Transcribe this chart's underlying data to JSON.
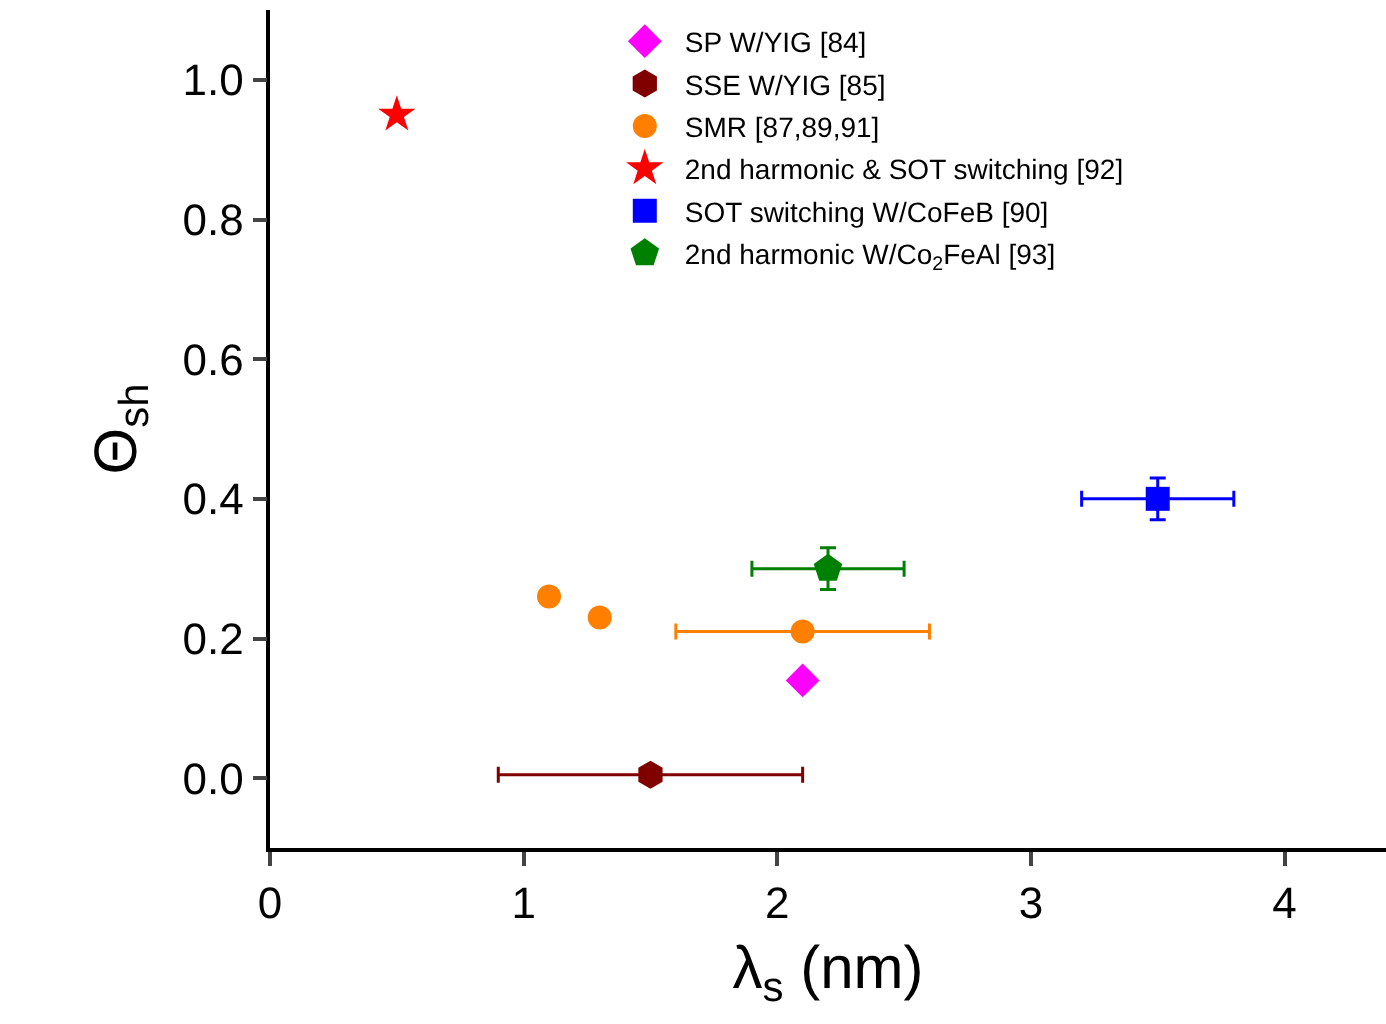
{
  "chart_data": {
    "type": "scatter",
    "xlabel": "λ$_{s}$ (nm)",
    "ylabel": "Θ$_{sh}$",
    "xlim": [
      0,
      4.4
    ],
    "ylim": [
      -0.1,
      1.1
    ],
    "xticks": [
      0,
      1,
      2,
      3,
      4
    ],
    "yticks": [
      {
        "value": 0,
        "label": "0.0"
      },
      0.2,
      0.4,
      0.6,
      0.8,
      {
        "value": 1,
        "label": "1.0"
      }
    ],
    "grid": false,
    "legend": "top",
    "series": [
      {
        "name": "SP W/YIG [84]",
        "color": "#ff00ff",
        "marker": "diamond",
        "x": [
          2.1
        ],
        "values": [
          0.14
        ]
      },
      {
        "name": "SSE W/YIG [85]",
        "color": "#800000",
        "x": [
          1.5
        ],
        "values": [
          0.005
        ],
        "xerrors": [
          [
            0.9,
            2.1
          ]
        ]
      },
      {
        "name": "SMR [87,89,91]",
        "color": "#ff8000",
        "marker": "circle",
        "x": [
          1.1,
          1.3,
          2.1
        ],
        "values": [
          0.26,
          0.23,
          0.21
        ],
        "xerrors": [
          null,
          null,
          [
            1.6,
            2.6
          ]
        ]
      },
      {
        "name": "2nd harmonic & SOT switching [92]",
        "color": "#ff0000",
        "marker": "star",
        "x": [
          0.5
        ],
        "values": [
          0.95
        ]
      },
      {
        "name": "SOT switching W/CoFeB [90]",
        "color": "#0000ff",
        "marker": "square",
        "x": [
          3.5
        ],
        "values": [
          0.4
        ],
        "errors": [
          [
            0.37,
            0.43
          ]
        ],
        "xerrors": [
          [
            3.2,
            3.8
          ]
        ]
      },
      {
        "name": "2nd harmonic W/Co$_{2}$FeAl [93]",
        "color": "#008000",
        "x": [
          2.2
        ],
        "values": [
          0.3
        ],
        "errors": [
          [
            0.27,
            0.33
          ]
        ],
        "xerrors": [
          [
            1.9,
            2.5
          ]
        ]
      }
    ]
  }
}
